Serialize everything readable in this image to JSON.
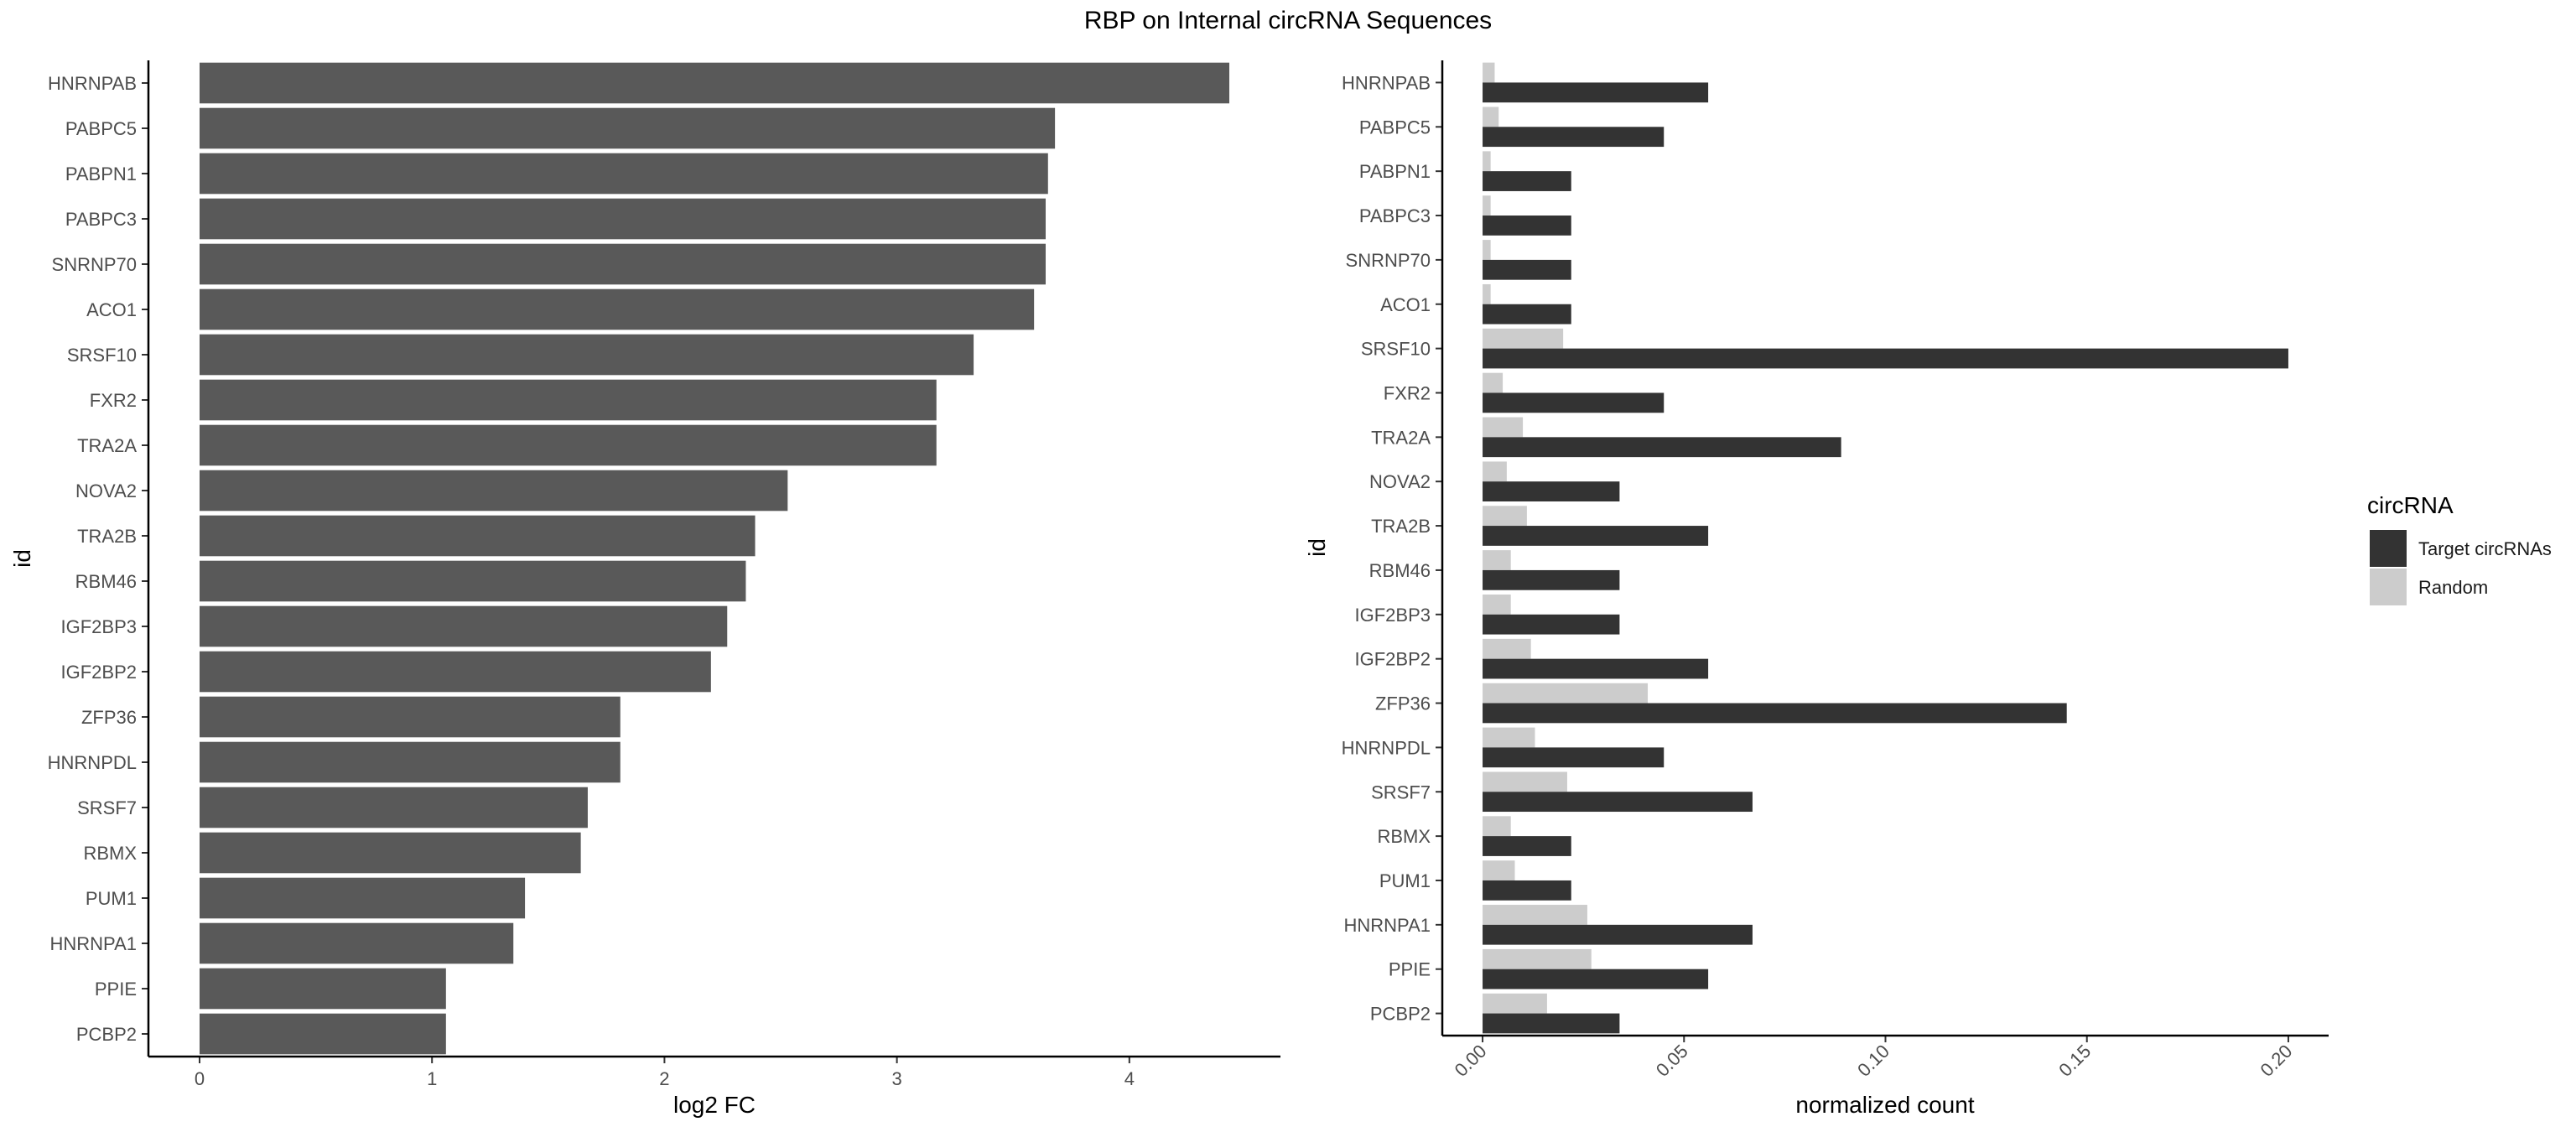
{
  "title": "RBP on Internal circRNA Sequences",
  "chart_data": [
    {
      "type": "bar",
      "orientation": "horizontal",
      "categories": [
        "HNRNPAB",
        "PABPC5",
        "PABPN1",
        "PABPC3",
        "SNRNP70",
        "ACO1",
        "SRSF10",
        "FXR2",
        "TRA2A",
        "NOVA2",
        "TRA2B",
        "RBM46",
        "IGF2BP3",
        "IGF2BP2",
        "ZFP36",
        "HNRNPDL",
        "SRSF7",
        "RBMX",
        "PUM1",
        "HNRNPA1",
        "PPIE",
        "PCBP2"
      ],
      "values": [
        4.43,
        3.68,
        3.65,
        3.64,
        3.64,
        3.59,
        3.33,
        3.17,
        3.17,
        2.53,
        2.39,
        2.35,
        2.27,
        2.2,
        1.81,
        1.81,
        1.67,
        1.64,
        1.4,
        1.35,
        1.06,
        1.06
      ],
      "xlabel": "log2 FC",
      "ylabel": "id",
      "xlim": [
        -0.22,
        4.65
      ],
      "xticks": [
        "0",
        "1",
        "2",
        "3",
        "4"
      ],
      "bar_color": "#595959"
    },
    {
      "type": "bar",
      "orientation": "horizontal",
      "grouped": true,
      "categories": [
        "HNRNPAB",
        "PABPC5",
        "PABPN1",
        "PABPC3",
        "SNRNP70",
        "ACO1",
        "SRSF10",
        "FXR2",
        "TRA2A",
        "NOVA2",
        "TRA2B",
        "RBM46",
        "IGF2BP3",
        "IGF2BP2",
        "ZFP36",
        "HNRNPDL",
        "SRSF7",
        "RBMX",
        "PUM1",
        "HNRNPA1",
        "PPIE",
        "PCBP2"
      ],
      "series": [
        {
          "name": "Target circRNAs",
          "color": "#333333",
          "values": [
            0.056,
            0.045,
            0.022,
            0.022,
            0.022,
            0.022,
            0.2,
            0.045,
            0.089,
            0.034,
            0.056,
            0.034,
            0.034,
            0.056,
            0.145,
            0.045,
            0.067,
            0.022,
            0.022,
            0.067,
            0.056,
            0.034
          ]
        },
        {
          "name": "Random",
          "color": "#cccccc",
          "values": [
            0.003,
            0.004,
            0.002,
            0.002,
            0.002,
            0.002,
            0.02,
            0.005,
            0.01,
            0.006,
            0.011,
            0.007,
            0.007,
            0.012,
            0.041,
            0.013,
            0.021,
            0.007,
            0.008,
            0.026,
            0.027,
            0.016
          ]
        }
      ],
      "xlabel": "normalized count",
      "ylabel": "id",
      "xlim": [
        -0.01,
        0.21
      ],
      "xticks": [
        "0.00",
        "0.05",
        "0.10",
        "0.15",
        "0.20"
      ],
      "tick_label_rotation": -45,
      "legend": {
        "title": "circRNA",
        "position": "right"
      }
    }
  ]
}
